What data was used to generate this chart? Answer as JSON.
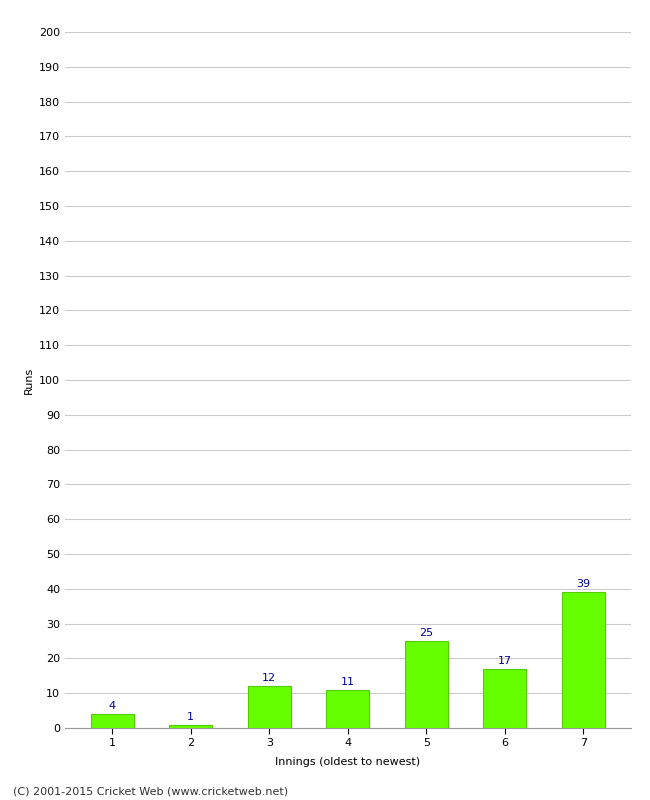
{
  "categories": [
    "1",
    "2",
    "3",
    "4",
    "5",
    "6",
    "7"
  ],
  "values": [
    4,
    1,
    12,
    11,
    25,
    17,
    39
  ],
  "bar_color": "#66ff00",
  "bar_edge_color": "#55cc00",
  "ylabel": "Runs",
  "xlabel": "Innings (oldest to newest)",
  "ylim": [
    0,
    200
  ],
  "yticks": [
    0,
    10,
    20,
    30,
    40,
    50,
    60,
    70,
    80,
    90,
    100,
    110,
    120,
    130,
    140,
    150,
    160,
    170,
    180,
    190,
    200
  ],
  "annotation_color": "#000099",
  "annotation_fontsize": 8,
  "footer_text": "(C) 2001-2015 Cricket Web (www.cricketweb.net)",
  "footer_fontsize": 8,
  "footer_color": "#333333",
  "ylabel_fontsize": 8,
  "xlabel_fontsize": 8,
  "tick_fontsize": 8,
  "background_color": "#ffffff",
  "grid_color": "#cccccc",
  "bar_width": 0.55
}
